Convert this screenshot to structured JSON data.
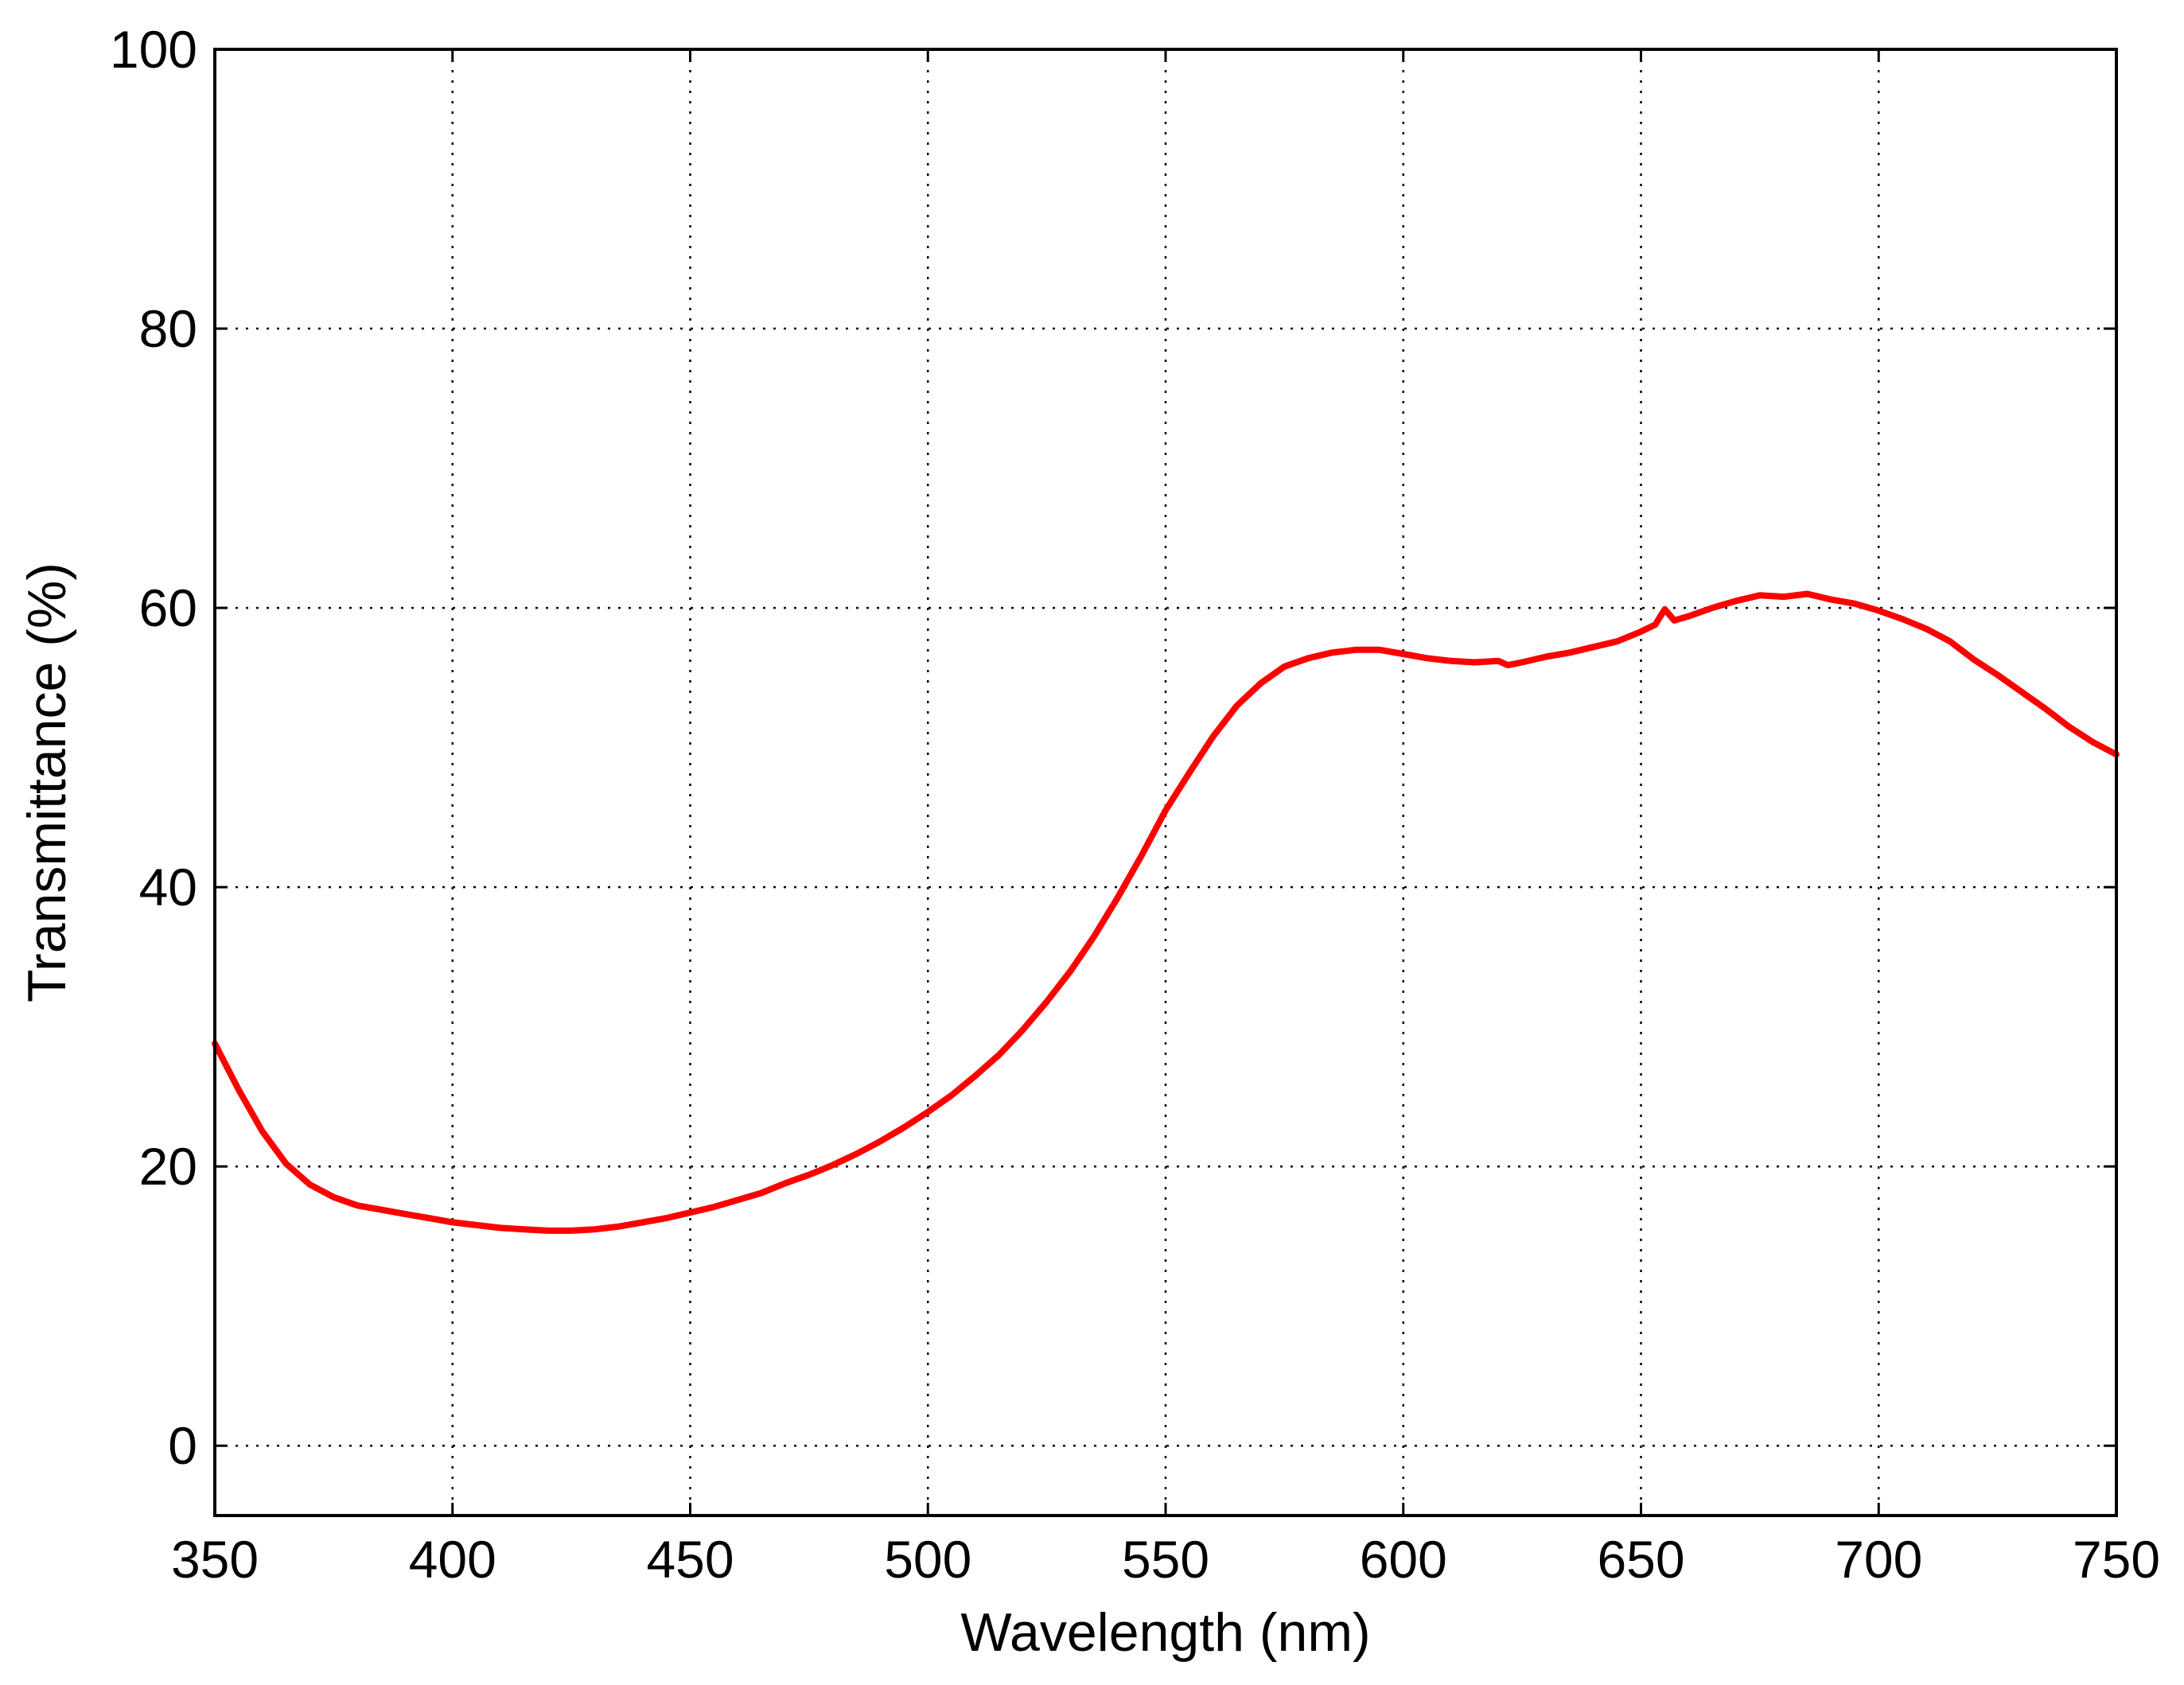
{
  "chart_data": {
    "type": "line",
    "title": "",
    "xlabel": "Wavelength (nm)",
    "ylabel": "Transmittance (%)",
    "xlim": [
      350,
      750
    ],
    "ylim": [
      -5,
      100
    ],
    "x_ticks": [
      {
        "value": 350,
        "label": "350"
      },
      {
        "value": 400,
        "label": "400"
      },
      {
        "value": 450,
        "label": "450"
      },
      {
        "value": 500,
        "label": "500"
      },
      {
        "value": 550,
        "label": "550"
      },
      {
        "value": 600,
        "label": "600"
      },
      {
        "value": 650,
        "label": "650"
      },
      {
        "value": 700,
        "label": "700"
      },
      {
        "value": 750,
        "label": "750"
      }
    ],
    "y_ticks": [
      {
        "value": 0,
        "label": "0"
      },
      {
        "value": 20,
        "label": "20"
      },
      {
        "value": 40,
        "label": "40"
      },
      {
        "value": 60,
        "label": "60"
      },
      {
        "value": 80,
        "label": "80"
      },
      {
        "value": 100,
        "label": "100"
      }
    ],
    "grid": true,
    "grid_style": "dotted",
    "legend": "none",
    "series": [
      {
        "color": "#ff0000",
        "points": [
          [
            350,
            28.8
          ],
          [
            355,
            25.5
          ],
          [
            360,
            22.5
          ],
          [
            365,
            20.2
          ],
          [
            370,
            18.7
          ],
          [
            375,
            17.8
          ],
          [
            380,
            17.2
          ],
          [
            385,
            16.9
          ],
          [
            390,
            16.6
          ],
          [
            395,
            16.3
          ],
          [
            400,
            16.0
          ],
          [
            405,
            15.8
          ],
          [
            410,
            15.6
          ],
          [
            415,
            15.5
          ],
          [
            420,
            15.4
          ],
          [
            425,
            15.4
          ],
          [
            430,
            15.5
          ],
          [
            435,
            15.7
          ],
          [
            440,
            16.0
          ],
          [
            445,
            16.3
          ],
          [
            450,
            16.7
          ],
          [
            455,
            17.1
          ],
          [
            460,
            17.6
          ],
          [
            465,
            18.1
          ],
          [
            470,
            18.8
          ],
          [
            475,
            19.4
          ],
          [
            480,
            20.1
          ],
          [
            485,
            20.9
          ],
          [
            490,
            21.8
          ],
          [
            495,
            22.8
          ],
          [
            500,
            23.9
          ],
          [
            505,
            25.1
          ],
          [
            510,
            26.5
          ],
          [
            515,
            28.0
          ],
          [
            520,
            29.8
          ],
          [
            525,
            31.8
          ],
          [
            530,
            34.0
          ],
          [
            535,
            36.5
          ],
          [
            540,
            39.3
          ],
          [
            545,
            42.3
          ],
          [
            550,
            45.5
          ],
          [
            555,
            48.2
          ],
          [
            560,
            50.8
          ],
          [
            565,
            53.0
          ],
          [
            570,
            54.6
          ],
          [
            575,
            55.8
          ],
          [
            580,
            56.4
          ],
          [
            585,
            56.8
          ],
          [
            590,
            57.0
          ],
          [
            595,
            57.0
          ],
          [
            600,
            56.7
          ],
          [
            605,
            56.4
          ],
          [
            610,
            56.2
          ],
          [
            615,
            56.1
          ],
          [
            620,
            56.2
          ],
          [
            622,
            55.9
          ],
          [
            625,
            56.1
          ],
          [
            630,
            56.5
          ],
          [
            635,
            56.8
          ],
          [
            640,
            57.2
          ],
          [
            645,
            57.6
          ],
          [
            650,
            58.3
          ],
          [
            653,
            58.8
          ],
          [
            655,
            59.9
          ],
          [
            657,
            59.1
          ],
          [
            660,
            59.4
          ],
          [
            665,
            60.0
          ],
          [
            670,
            60.5
          ],
          [
            675,
            60.9
          ],
          [
            680,
            60.8
          ],
          [
            685,
            61.0
          ],
          [
            690,
            60.6
          ],
          [
            695,
            60.3
          ],
          [
            700,
            59.8
          ],
          [
            705,
            59.2
          ],
          [
            710,
            58.5
          ],
          [
            715,
            57.6
          ],
          [
            720,
            56.3
          ],
          [
            725,
            55.2
          ],
          [
            730,
            54.0
          ],
          [
            735,
            52.8
          ],
          [
            740,
            51.5
          ],
          [
            745,
            50.4
          ],
          [
            750,
            49.5
          ]
        ]
      }
    ]
  }
}
